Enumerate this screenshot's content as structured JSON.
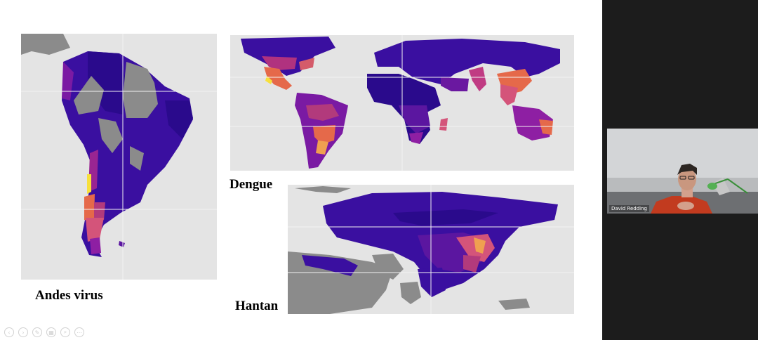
{
  "slide": {
    "maps": [
      {
        "id": "andes",
        "label": "Andes virus"
      },
      {
        "id": "dengue",
        "label": "Dengue"
      },
      {
        "id": "hantan",
        "label": "Hantan"
      }
    ],
    "controls": [
      {
        "icon": "previous-icon",
        "glyph": "‹"
      },
      {
        "icon": "next-icon",
        "glyph": "›"
      },
      {
        "icon": "pen-icon",
        "glyph": "✎"
      },
      {
        "icon": "slides-icon",
        "glyph": "▦"
      },
      {
        "icon": "zoom-icon",
        "glyph": "⌕"
      },
      {
        "icon": "more-icon",
        "glyph": "⋯"
      }
    ]
  },
  "video": {
    "participant_name": "David Redding"
  },
  "colors": {
    "ocean": "#e4e4e4",
    "no_data": "#8b8b8b",
    "risk_low": "#2a0a8c",
    "risk_mid": "#8e1fa3",
    "risk_high": "#e5694a",
    "risk_max": "#f7e03c"
  }
}
